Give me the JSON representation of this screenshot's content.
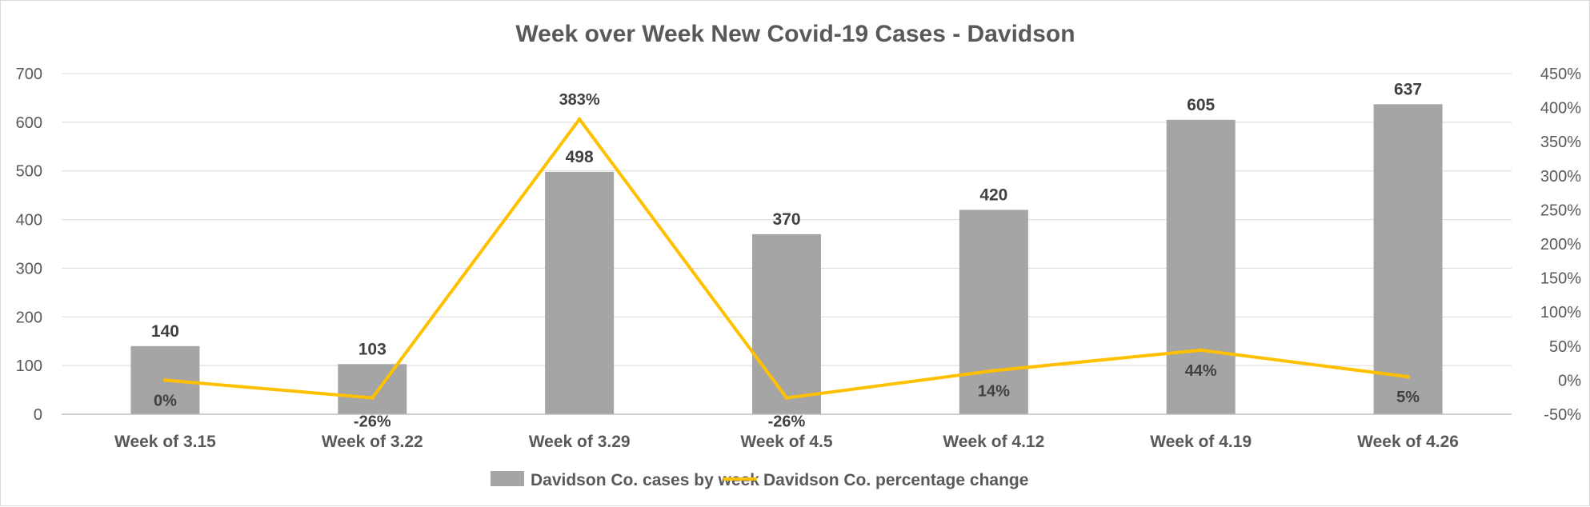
{
  "chart_data": {
    "type": "bar",
    "title": "Week over Week New Covid-19 Cases - Davidson",
    "categories": [
      "Week of 3.15",
      "Week of 3.22",
      "Week of 3.29",
      "Week of 4.5",
      "Week of 4.12",
      "Week of 4.19",
      "Week of 4.26"
    ],
    "series": [
      {
        "name": "Davidson Co. cases by week",
        "type": "bar",
        "axis": "left",
        "color": "#a5a5a5",
        "values": [
          140,
          103,
          498,
          370,
          420,
          605,
          637
        ],
        "labels": [
          "140",
          "103",
          "498",
          "370",
          "420",
          "605",
          "637"
        ]
      },
      {
        "name": "Davidson Co. percentage change",
        "type": "line",
        "axis": "right",
        "color": "#ffc000",
        "values": [
          0,
          -26,
          383,
          -26,
          14,
          44,
          5
        ],
        "labels": [
          "0%",
          "-26%",
          "383%",
          "-26%",
          "14%",
          "44%",
          "5%"
        ]
      }
    ],
    "y_left": {
      "ylim": [
        0,
        700
      ],
      "ticks": [
        "0",
        "100",
        "200",
        "300",
        "400",
        "500",
        "600",
        "700"
      ]
    },
    "y_right": {
      "ylim": [
        -50,
        450
      ],
      "ticks": [
        "-50%",
        "0%",
        "50%",
        "100%",
        "150%",
        "200%",
        "250%",
        "300%",
        "350%",
        "400%",
        "450%"
      ]
    },
    "grid": true,
    "legend": "bottom"
  }
}
